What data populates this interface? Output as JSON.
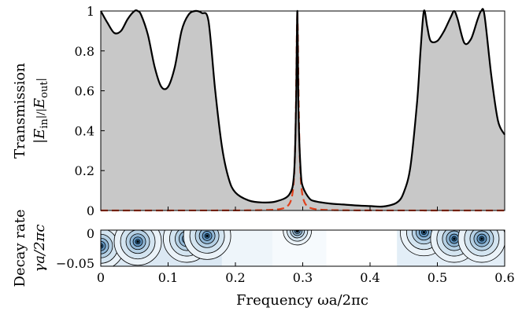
{
  "colors": {
    "fill": "#c8c8c8",
    "curve": "#000000",
    "lorentz": "#e0401c",
    "contour_dark": "#2f6d9c",
    "contour_light": "#eef5fa"
  },
  "labels": {
    "top_ylabel_line1": "Transmission",
    "top_ylabel_line2": "|E_in|/|E_out|",
    "bottom_ylabel_line1": "Decay rate",
    "bottom_ylabel_line2": "γa/2πc",
    "xlabel": "Frequency ωa/2πc"
  },
  "chart_data": [
    {
      "type": "area",
      "xlim": [
        0,
        0.6
      ],
      "ylim": [
        0,
        1
      ],
      "x_ticks": [
        "0",
        "0.1",
        "0.2",
        "0.3",
        "0.4",
        "0.5",
        "0.6"
      ],
      "y_ticks": [
        "0",
        "0.2",
        "0.4",
        "0.6",
        "0.8",
        "1"
      ],
      "series": [
        {
          "style": "solid-black-filled-gray",
          "x": [
            0.0,
            0.01,
            0.02,
            0.03,
            0.04,
            0.05,
            0.055,
            0.06,
            0.07,
            0.08,
            0.09,
            0.1,
            0.11,
            0.12,
            0.13,
            0.14,
            0.15,
            0.16,
            0.17,
            0.18,
            0.19,
            0.2,
            0.22,
            0.24,
            0.26,
            0.28,
            0.287,
            0.29,
            0.291,
            0.292,
            0.293,
            0.294,
            0.297,
            0.3,
            0.31,
            0.32,
            0.34,
            0.36,
            0.38,
            0.4,
            0.42,
            0.44,
            0.45,
            0.46,
            0.47,
            0.475,
            0.48,
            0.485,
            0.49,
            0.5,
            0.51,
            0.52,
            0.525,
            0.53,
            0.54,
            0.55,
            0.56,
            0.565,
            0.57,
            0.58,
            0.59,
            0.6
          ],
          "y": [
            1.0,
            0.94,
            0.89,
            0.9,
            0.96,
            1.0,
            1.0,
            0.98,
            0.88,
            0.72,
            0.62,
            0.62,
            0.72,
            0.9,
            0.98,
            1.0,
            0.99,
            0.95,
            0.6,
            0.32,
            0.16,
            0.09,
            0.05,
            0.04,
            0.045,
            0.08,
            0.18,
            0.5,
            0.78,
            1.0,
            0.72,
            0.45,
            0.2,
            0.12,
            0.06,
            0.045,
            0.035,
            0.03,
            0.025,
            0.022,
            0.02,
            0.04,
            0.09,
            0.22,
            0.55,
            0.8,
            1.0,
            0.92,
            0.85,
            0.85,
            0.9,
            0.97,
            1.0,
            0.96,
            0.84,
            0.86,
            0.96,
            1.0,
            0.98,
            0.68,
            0.45,
            0.38
          ]
        },
        {
          "style": "dashed-orange",
          "type": "lorentzian",
          "center": 0.292,
          "halfwidth": 0.0022,
          "x_range": [
            0.0,
            0.6
          ]
        }
      ]
    },
    {
      "type": "heatmap",
      "xlim": [
        0,
        0.6
      ],
      "ylim": [
        -0.05,
        0
      ],
      "x_ticks": [
        "0",
        "0.1",
        "0.2",
        "0.3",
        "0.4",
        "0.5",
        "0.6"
      ],
      "y_ticks": [
        "0",
        "−0.05"
      ],
      "poles": [
        {
          "x": 0.0,
          "y": -0.022
        },
        {
          "x": 0.055,
          "y": -0.016
        },
        {
          "x": 0.128,
          "y": -0.012
        },
        {
          "x": 0.158,
          "y": -0.008
        },
        {
          "x": 0.292,
          "y": -0.001
        },
        {
          "x": 0.48,
          "y": -0.003
        },
        {
          "x": 0.525,
          "y": -0.012
        },
        {
          "x": 0.566,
          "y": -0.012
        }
      ]
    }
  ]
}
